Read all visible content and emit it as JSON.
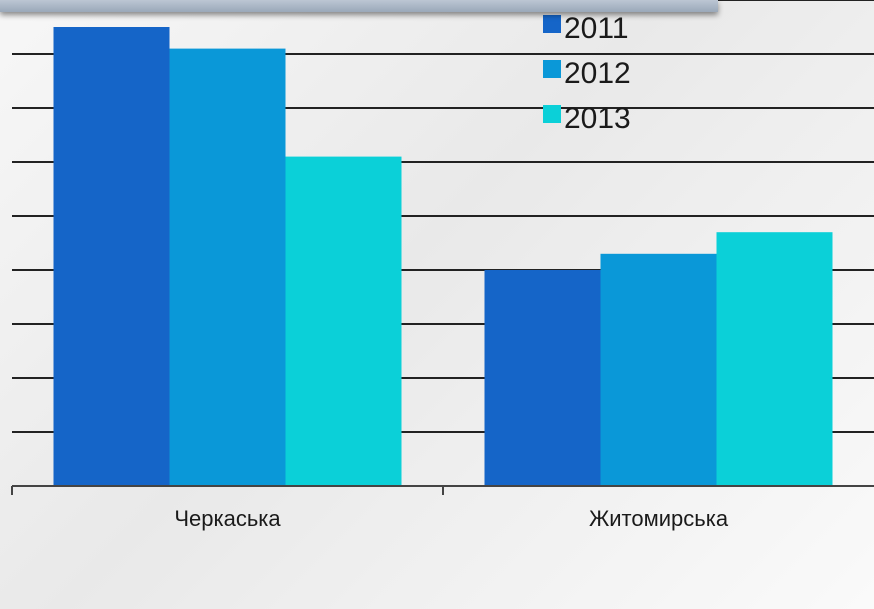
{
  "chart_data": {
    "type": "bar",
    "categories": [
      "Черкаська",
      "Житомирська"
    ],
    "series": [
      {
        "name": "2011",
        "color": "#1565c8",
        "values": [
          8.5,
          4.0
        ]
      },
      {
        "name": "2012",
        "color": "#0a98d8",
        "values": [
          8.1,
          4.3
        ]
      },
      {
        "name": "2013",
        "color": "#0bd0d8",
        "values": [
          6.1,
          4.7
        ]
      }
    ],
    "ylim": [
      0,
      9
    ],
    "grid": true,
    "legend_position": "top-right"
  }
}
